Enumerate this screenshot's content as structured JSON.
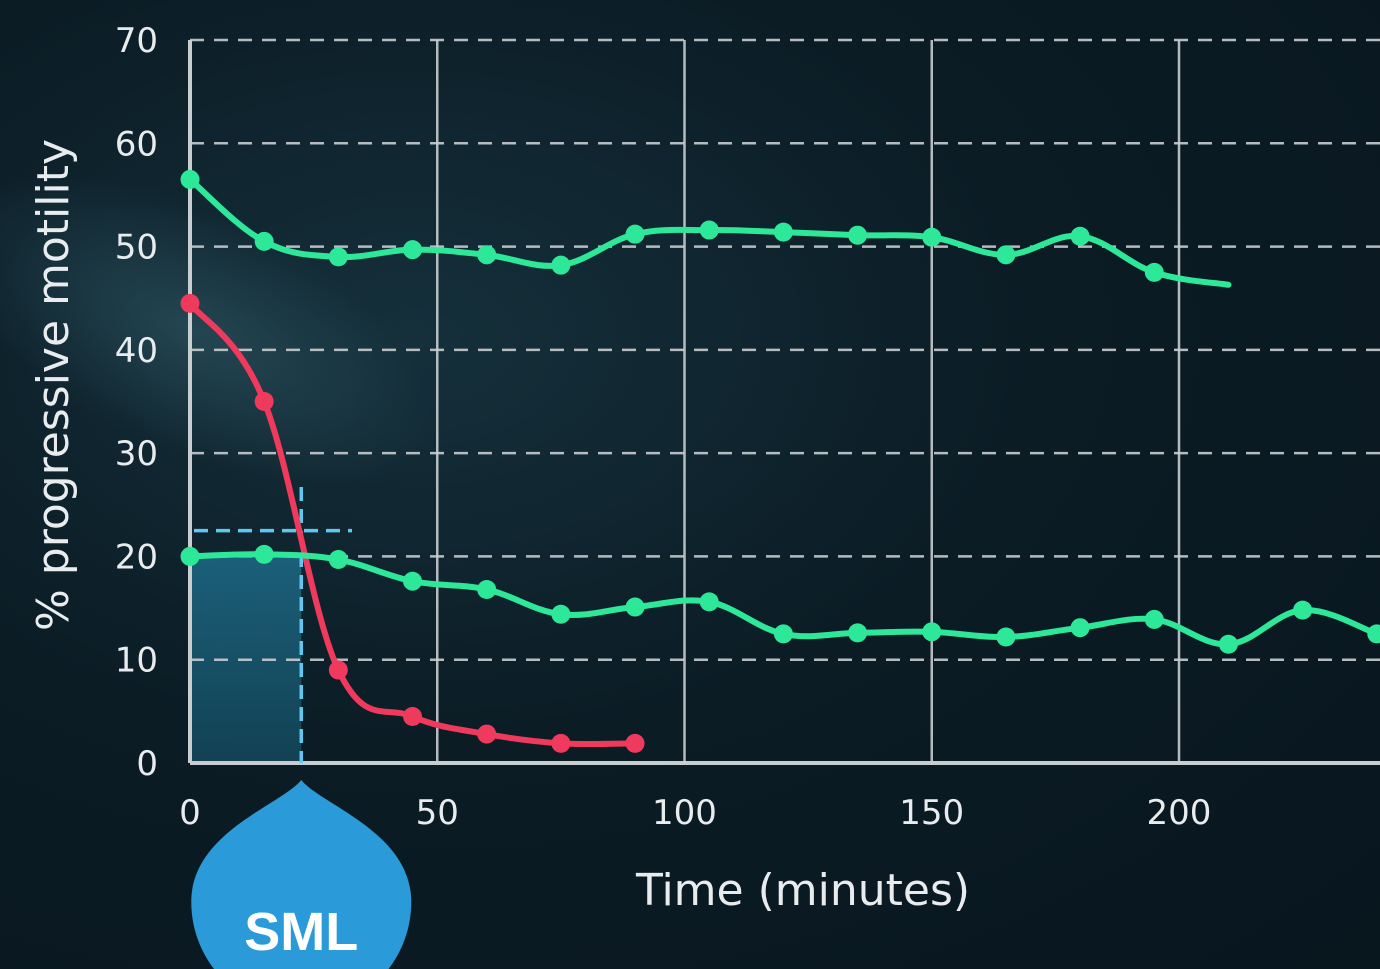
{
  "chart_data": {
    "type": "line",
    "xlabel": "Time (minutes)",
    "ylabel": "% progressive motility",
    "xlim": [
      0,
      240
    ],
    "ylim": [
      0,
      70
    ],
    "x_ticks": [
      "0",
      "50",
      "100",
      "150",
      "200"
    ],
    "y_ticks": [
      "0",
      "10",
      "20",
      "30",
      "40",
      "50",
      "60",
      "70"
    ],
    "grid": "dashed horizontal, solid vertical",
    "series": [
      {
        "color": "#2ee89a",
        "x": [
          0,
          15,
          30,
          45,
          60,
          75,
          90,
          105,
          120,
          135,
          150,
          165,
          180,
          195,
          210
        ],
        "y": [
          56.5,
          50.5,
          49,
          49.7,
          49.2,
          48.2,
          51.2,
          51.6,
          51.4,
          51.1,
          50.9,
          49.2,
          51,
          47.5,
          46.3
        ],
        "markers": [
          true,
          true,
          true,
          true,
          true,
          true,
          true,
          true,
          true,
          true,
          true,
          true,
          true,
          true,
          false
        ]
      },
      {
        "color": "#ef3a5d",
        "x": [
          0,
          15,
          30,
          45,
          60,
          75,
          90
        ],
        "y": [
          44.5,
          35,
          9,
          4.5,
          2.8,
          1.9,
          1.9
        ],
        "markers": [
          true,
          true,
          true,
          true,
          true,
          true,
          true
        ]
      },
      {
        "color": "#2ee89a",
        "x": [
          0,
          15,
          30,
          45,
          60,
          75,
          90,
          105,
          120,
          135,
          150,
          165,
          180,
          195,
          210,
          225,
          240
        ],
        "y": [
          20,
          20.2,
          19.7,
          17.6,
          16.8,
          14.4,
          15.1,
          15.6,
          12.5,
          12.6,
          12.7,
          12.2,
          13.1,
          13.9,
          11.5,
          14.8,
          12.5
        ],
        "markers": [
          true,
          true,
          true,
          true,
          true,
          true,
          true,
          true,
          true,
          true,
          true,
          true,
          true,
          true,
          true,
          true,
          true
        ]
      }
    ],
    "annotations": {
      "sml_marker": {
        "x": 22.5,
        "y": 22.5,
        "label": "SML",
        "color": "#2a9bd8"
      }
    }
  },
  "theme": {
    "axis_color": "#c8cdd0",
    "grid_color": "#c8cdd0",
    "shade_color": "#1a5a72",
    "crosshair_color": "#5ec8f0"
  }
}
